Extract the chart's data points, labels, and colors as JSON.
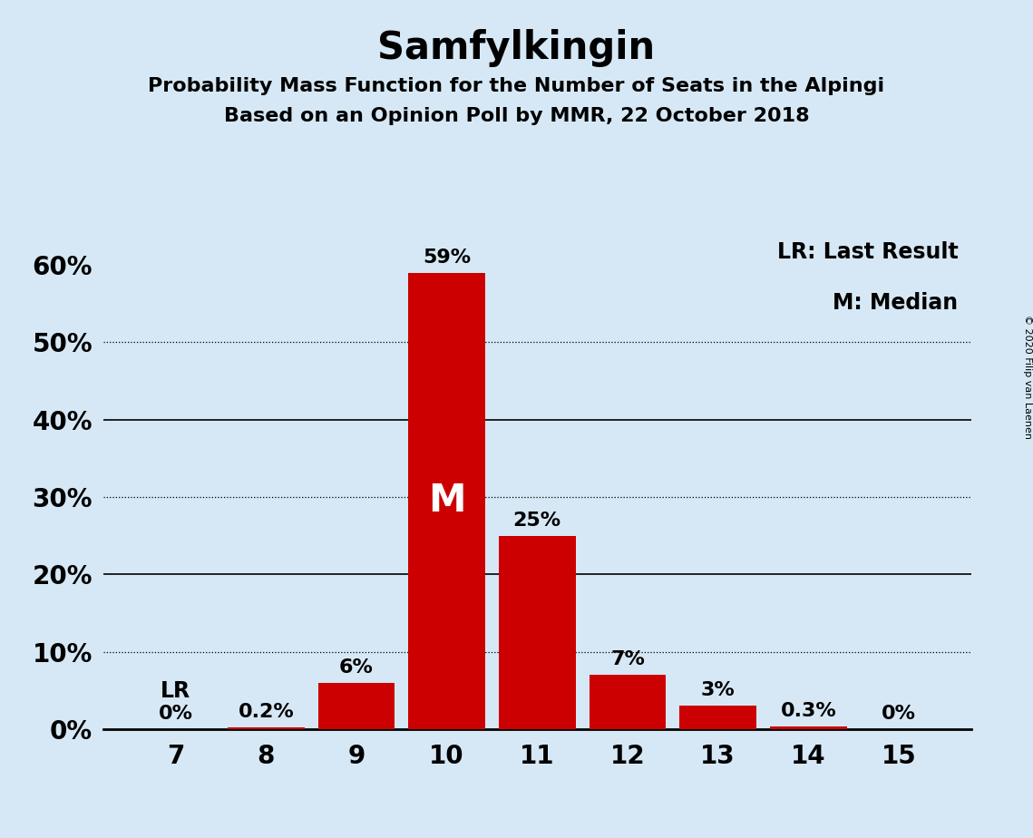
{
  "title": "Samfylkingin",
  "subtitle1": "Probability Mass Function for the Number of Seats in the Alpingi",
  "subtitle2": "Based on an Opinion Poll by MMR, 22 October 2018",
  "copyright": "© 2020 Filip van Laenen",
  "categories": [
    7,
    8,
    9,
    10,
    11,
    12,
    13,
    14,
    15
  ],
  "values": [
    0.0,
    0.2,
    6.0,
    59.0,
    25.0,
    7.0,
    3.0,
    0.3,
    0.0
  ],
  "labels": [
    "0%",
    "0.2%",
    "6%",
    "59%",
    "25%",
    "7%",
    "3%",
    "0.3%",
    "0%"
  ],
  "bar_color": "#cc0000",
  "background_color": "#d6e8f5",
  "median_seat": 10,
  "median_label": "M",
  "lr_seat": 7,
  "lr_label": "LR",
  "yticks": [
    0,
    10,
    20,
    30,
    40,
    50,
    60
  ],
  "ylim": [
    0,
    65
  ],
  "legend_lr": "LR: Last Result",
  "legend_m": "M: Median",
  "title_fontsize": 30,
  "subtitle_fontsize": 16,
  "label_fontsize": 16,
  "tick_fontsize": 20,
  "legend_fontsize": 17,
  "median_label_fontsize": 30,
  "lr_label_fontsize": 17
}
